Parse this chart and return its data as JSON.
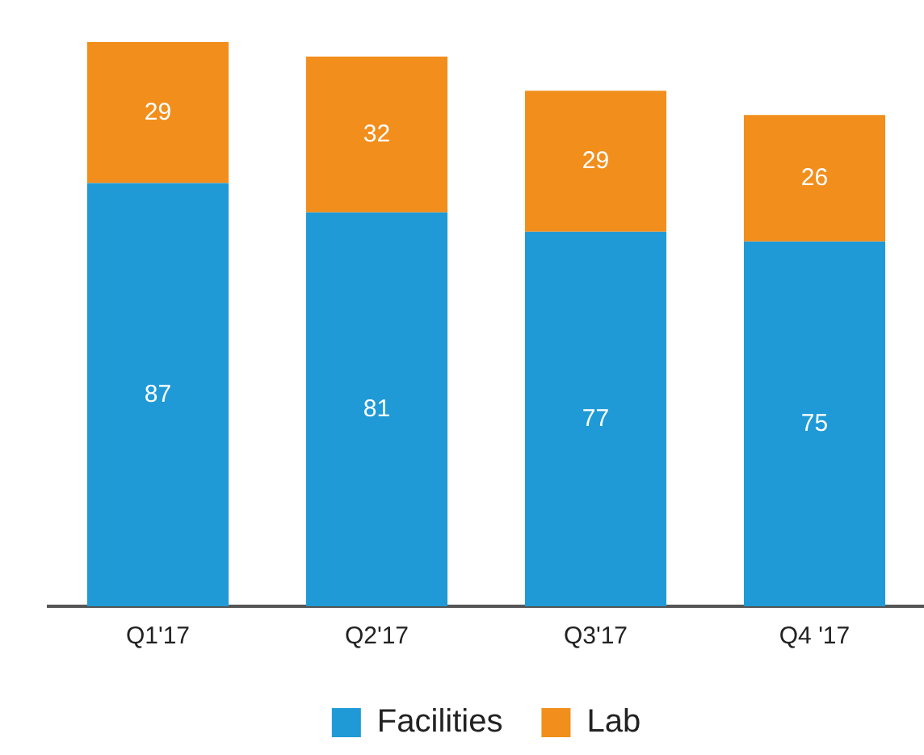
{
  "chart_data": {
    "type": "bar",
    "stacked": true,
    "data_labels": true,
    "legend": "bottom",
    "grid": false,
    "tick_labels": "x",
    "categories": [
      "Q1'17",
      "Q2'17",
      "Q3'17",
      "Q4 '17"
    ],
    "series": [
      {
        "name": "Facilities",
        "color": "#1f9ad6",
        "values": [
          87,
          81,
          77,
          75
        ]
      },
      {
        "name": "Lab",
        "color": "#f28e1c",
        "values": [
          29,
          32,
          29,
          26
        ]
      }
    ]
  }
}
